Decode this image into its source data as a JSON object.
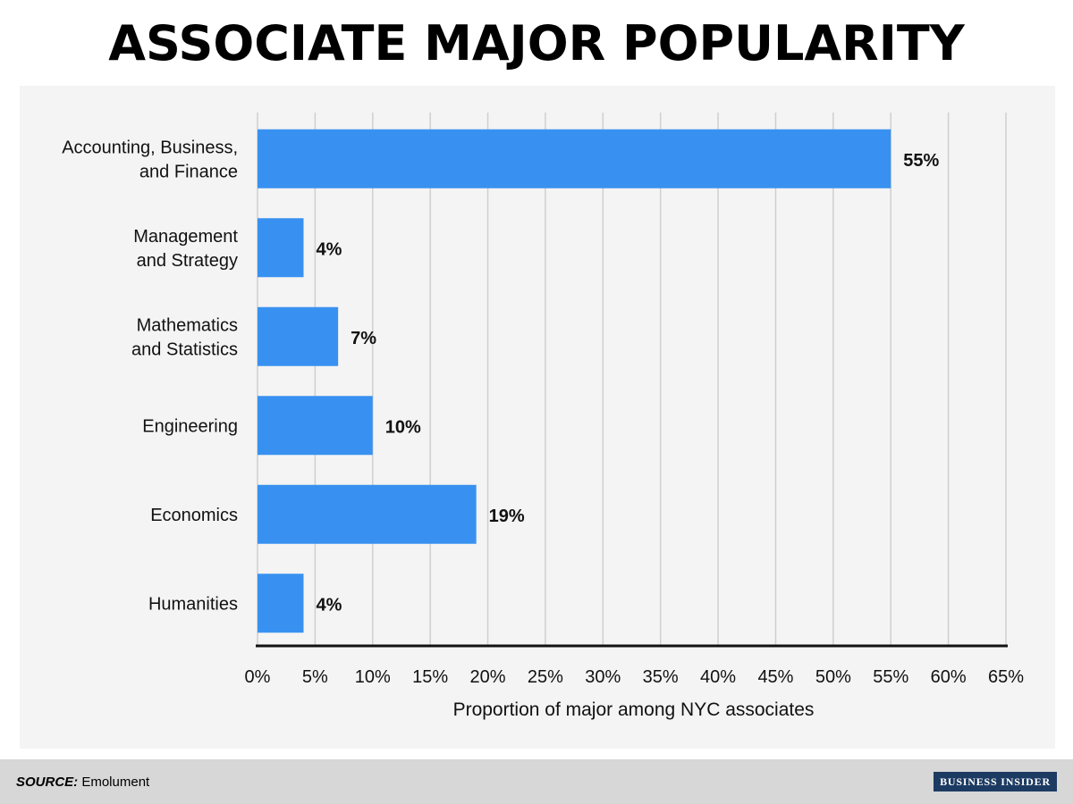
{
  "title": "ASSOCIATE MAJOR POPULARITY",
  "footer": {
    "source_label": "SOURCE:",
    "source_value": "Emolument",
    "brand": "BUSINESS INSIDER"
  },
  "colors": {
    "bar": "#3891f0",
    "background": "#f4f4f4",
    "footer": "#d7d7d7",
    "brand_bg": "#1d3b62"
  },
  "chart_data": {
    "type": "bar",
    "orientation": "horizontal",
    "title": "ASSOCIATE MAJOR POPULARITY",
    "xlabel": "Proportion of major among NYC associates",
    "ylabel": "",
    "categories": [
      [
        "Accounting, Business,",
        "and Finance"
      ],
      [
        "Management",
        "and Strategy"
      ],
      [
        "Mathematics",
        "and Statistics"
      ],
      [
        "Engineering"
      ],
      [
        "Economics"
      ],
      [
        "Humanities"
      ]
    ],
    "values": [
      55,
      4,
      7,
      10,
      19,
      4
    ],
    "value_labels": [
      "55%",
      "4%",
      "7%",
      "10%",
      "19%",
      "4%"
    ],
    "xlim": [
      0,
      65
    ],
    "ticks": [
      0,
      5,
      10,
      15,
      20,
      25,
      30,
      35,
      40,
      45,
      50,
      55,
      60,
      65
    ],
    "tick_labels": [
      "0%",
      "5%",
      "10%",
      "15%",
      "20%",
      "25%",
      "30%",
      "35%",
      "40%",
      "45%",
      "50%",
      "55%",
      "60%",
      "65%"
    ],
    "grid": true,
    "legend": "none"
  }
}
